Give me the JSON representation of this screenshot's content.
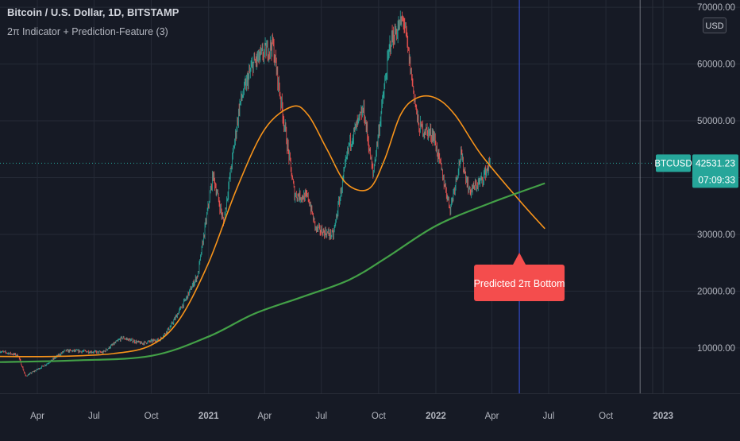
{
  "header": {
    "symbol_title": "Bitcoin / U.S. Dollar, 1D, BITSTAMP",
    "indicator_title": "2π Indicator + Prediction-Feature (3)",
    "currency_label": "USD"
  },
  "price_tag": {
    "symbol": "BTCUSD",
    "price": "42531.23",
    "countdown": "07:09:33",
    "value": 42531.23
  },
  "annotation": {
    "label": "Predicted 2π Bottom"
  },
  "colors": {
    "background": "#161a25",
    "grid": "#252a36",
    "candle_up": "#26a69a",
    "candle_down": "#ef5350",
    "orange_line": "#f7931a",
    "green_line": "#43a047",
    "prediction_line": "#3d5afe",
    "label_bg": "#f44d4d",
    "price_tag_bg": "#26a69a",
    "axis_text": "#b2b5be"
  },
  "chart_data": {
    "type": "line",
    "title": "Bitcoin / U.S. Dollar, 1D, BITSTAMP",
    "x_tick_labels": [
      "Apr",
      "Jul",
      "Oct",
      "2021",
      "Apr",
      "Jul",
      "Oct",
      "2022",
      "Apr",
      "Jul",
      "Oct",
      "2023"
    ],
    "x_tick_dates": [
      "2020-04-01",
      "2020-07-01",
      "2020-10-01",
      "2021-01-01",
      "2021-04-01",
      "2021-07-01",
      "2021-10-01",
      "2022-01-01",
      "2022-04-01",
      "2022-07-01",
      "2022-10-01",
      "2023-01-01"
    ],
    "y_tick_labels": [
      "10000.00",
      "20000.00",
      "30000.00",
      "40000.00",
      "50000.00",
      "60000.00",
      "70000.00"
    ],
    "y_ticks": [
      10000,
      20000,
      30000,
      40000,
      50000,
      60000,
      70000
    ],
    "ylim": [
      2000,
      71000
    ],
    "xlim": [
      "2020-02-01",
      "2023-03-01"
    ],
    "grid": true,
    "vertical_markers": [
      {
        "date": "2022-05-15",
        "label": "prediction"
      },
      {
        "date": "2022-11-25",
        "label": "cycle"
      }
    ],
    "series": [
      {
        "name": "BTCUSD",
        "kind": "price",
        "x": [
          "2020-02-01",
          "2020-03-01",
          "2020-03-13",
          "2020-04-15",
          "2020-05-15",
          "2020-06-15",
          "2020-07-15",
          "2020-08-15",
          "2020-09-15",
          "2020-10-15",
          "2020-11-01",
          "2020-11-25",
          "2020-12-15",
          "2021-01-08",
          "2021-01-25",
          "2021-02-20",
          "2021-03-13",
          "2021-04-14",
          "2021-05-19",
          "2021-06-10",
          "2021-06-22",
          "2021-07-20",
          "2021-08-15",
          "2021-09-07",
          "2021-09-22",
          "2021-10-20",
          "2021-11-10",
          "2021-12-04",
          "2021-12-28",
          "2022-01-24",
          "2022-02-10",
          "2022-02-24",
          "2022-03-15",
          "2022-03-29"
        ],
        "y": [
          9400,
          8700,
          5000,
          7100,
          9500,
          9400,
          9200,
          11800,
          10800,
          11500,
          13800,
          18500,
          23000,
          40500,
          32000,
          53000,
          60000,
          63500,
          37000,
          36500,
          31000,
          29800,
          46000,
          52000,
          40500,
          64000,
          68000,
          49000,
          47500,
          34500,
          44000,
          37500,
          39500,
          42531.23
        ]
      },
      {
        "name": "orange",
        "kind": "line",
        "x": [
          "2020-02-01",
          "2020-05-01",
          "2020-08-01",
          "2020-10-01",
          "2020-11-15",
          "2021-01-01",
          "2021-02-15",
          "2021-04-01",
          "2021-05-15",
          "2021-06-10",
          "2021-07-10",
          "2021-08-10",
          "2021-09-15",
          "2021-10-10",
          "2021-11-05",
          "2021-12-01",
          "2022-01-01",
          "2022-02-01",
          "2022-03-15",
          "2022-05-15",
          "2022-06-25"
        ],
        "y": [
          8500,
          8500,
          9000,
          10500,
          15000,
          25000,
          38000,
          48500,
          52500,
          51000,
          45000,
          39000,
          38000,
          43000,
          51000,
          54000,
          54000,
          51000,
          44000,
          36000,
          31000
        ]
      },
      {
        "name": "green",
        "kind": "line",
        "x": [
          "2020-02-01",
          "2020-06-01",
          "2020-10-01",
          "2021-01-01",
          "2021-03-15",
          "2021-06-01",
          "2021-08-15",
          "2021-10-15",
          "2022-01-01",
          "2022-03-29",
          "2022-06-25"
        ],
        "y": [
          7500,
          7800,
          8600,
          12000,
          16000,
          19000,
          22000,
          26000,
          31500,
          35500,
          39000
        ]
      }
    ]
  }
}
